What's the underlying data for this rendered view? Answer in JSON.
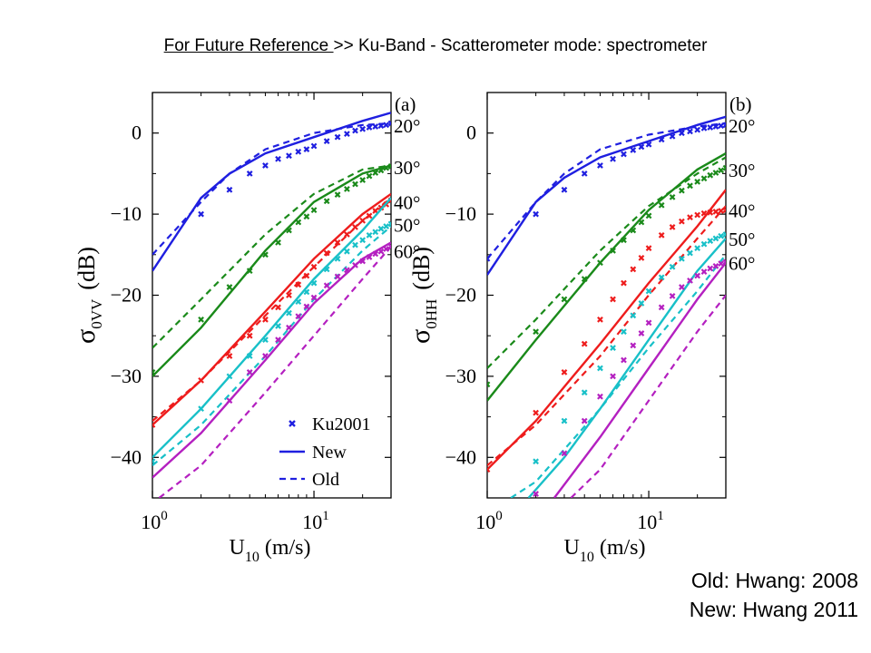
{
  "title": {
    "link_text": "For Future Reference ",
    "rest_text": ">> Ku-Band - Scatterometer mode: spectrometer"
  },
  "notes": [
    "Old: Hwang: 2008",
    "New: Hwang 2011"
  ],
  "colors": {
    "20": "#1f1fe0",
    "30": "#1a8a1a",
    "40": "#ee1c1c",
    "50": "#18c0c8",
    "60": "#b420c0"
  },
  "chart_data": [
    {
      "type": "line",
      "panel_label": "(a)",
      "xlabel": "U10 (m/s)",
      "xlabel_main": "U",
      "xlabel_sub": "10",
      "xlabel_unit": " (m/s)",
      "ylabel": "σ0VV (dB)",
      "ylabel_main": "σ",
      "ylabel_sub": "0VV",
      "ylabel_unit": "(dB)",
      "xscale": "log",
      "xlim": [
        1,
        30
      ],
      "ylim": [
        -45,
        5
      ],
      "xticks": [
        {
          "base": "10",
          "exp": "0",
          "value": 1
        },
        {
          "base": "10",
          "exp": "1",
          "value": 10
        }
      ],
      "yticks": [
        "0",
        "−10",
        "−20",
        "−30",
        "−40"
      ],
      "ytick_values": [
        0,
        -10,
        -20,
        -30,
        -40
      ],
      "legend": {
        "position": "bottom-right",
        "entries": [
          "Ku2001",
          "New",
          "Old"
        ]
      },
      "series": [
        {
          "angle": "20°",
          "end_label": "20°",
          "label_y": 1,
          "new": {
            "x": [
              1,
              2,
              3,
              5,
              10,
              20,
              30
            ],
            "y": [
              -17,
              -8,
              -5,
              -2.5,
              -0.5,
              1.5,
              2.5
            ]
          },
          "old": {
            "x": [
              1,
              2,
              3,
              5,
              10,
              20,
              30
            ],
            "y": [
              -15,
              -8.5,
              -5,
              -2,
              0,
              1,
              1.2
            ]
          },
          "ku2001": {
            "x": [
              2,
              3,
              4,
              5,
              6,
              7,
              8,
              9,
              10,
              12,
              14,
              16,
              18,
              20,
              22,
              24,
              26,
              28,
              30
            ],
            "y": [
              -10,
              -7,
              -5,
              -4,
              -3.2,
              -2.8,
              -2.3,
              -2,
              -1.6,
              -1,
              -0.5,
              -0.1,
              0.3,
              0.5,
              0.7,
              0.8,
              0.9,
              1,
              1.2
            ]
          }
        },
        {
          "angle": "30°",
          "end_label": "30°",
          "label_y": -4.2,
          "new": {
            "x": [
              1,
              2,
              5,
              10,
              20,
              30
            ],
            "y": [
              -30,
              -24,
              -14.5,
              -8.5,
              -5,
              -4
            ]
          },
          "old": {
            "x": [
              1,
              2,
              5,
              10,
              20,
              30
            ],
            "y": [
              -26.5,
              -20.5,
              -12.5,
              -7.5,
              -4.5,
              -4
            ]
          },
          "ku2001": {
            "x": [
              1,
              2,
              3,
              4,
              5,
              6,
              7,
              8,
              9,
              10,
              12,
              14,
              16,
              18,
              20,
              22,
              24,
              26,
              28,
              30
            ],
            "y": [
              -29.5,
              -23,
              -19,
              -17,
              -15,
              -13.5,
              -12,
              -11,
              -10.3,
              -9.5,
              -8.4,
              -7.6,
              -6.9,
              -6.3,
              -5.8,
              -5.3,
              -4.9,
              -4.6,
              -4.3,
              -4.1
            ]
          }
        },
        {
          "angle": "40°",
          "end_label": "40°",
          "label_y": -8.5,
          "new": {
            "x": [
              1,
              2,
              5,
              10,
              20,
              30
            ],
            "y": [
              -36,
              -30.5,
              -22,
              -15.5,
              -10,
              -7.5
            ]
          },
          "old": {
            "x": [
              1,
              2,
              5,
              10,
              20,
              30
            ],
            "y": [
              -35.5,
              -30.5,
              -22.5,
              -16.5,
              -10.8,
              -8
            ]
          },
          "ku2001": {
            "x": [
              1,
              2,
              3,
              4,
              5,
              6,
              7,
              8,
              9,
              10,
              12,
              14,
              16,
              18,
              20,
              22,
              24,
              26,
              28,
              30
            ],
            "y": [
              -36,
              -30.5,
              -27.5,
              -25,
              -23,
              -21.5,
              -20,
              -18.7,
              -17.6,
              -16.5,
              -14.8,
              -13.5,
              -12.5,
              -11.6,
              -10.8,
              -10.2,
              -9.6,
              -9.2,
              -8.8,
              -8.3
            ]
          }
        },
        {
          "angle": "50°",
          "end_label": "50°",
          "label_y": -11.3,
          "new": {
            "x": [
              1,
              2,
              5,
              10,
              20,
              30
            ],
            "y": [
              -40,
              -34,
              -25,
              -18,
              -12,
              -8
            ]
          },
          "old": {
            "x": [
              1,
              2,
              5,
              10,
              20,
              30
            ],
            "y": [
              -41,
              -36,
              -27.5,
              -20.5,
              -14.5,
              -11.5
            ]
          },
          "ku2001": {
            "x": [
              1,
              2,
              3,
              4,
              5,
              6,
              7,
              8,
              9,
              10,
              12,
              14,
              16,
              18,
              20,
              22,
              24,
              26,
              28,
              30
            ],
            "y": [
              -40.5,
              -34,
              -30,
              -27.5,
              -25.5,
              -23.8,
              -22.2,
              -20.8,
              -19.6,
              -18.5,
              -16.8,
              -15.5,
              -14.6,
              -13.8,
              -13.2,
              -12.6,
              -12.2,
              -11.8,
              -11.5,
              -11.2
            ]
          }
        },
        {
          "angle": "60°",
          "end_label": "60°",
          "label_y": -14.5,
          "new": {
            "x": [
              1,
              2,
              5,
              10,
              20,
              30
            ],
            "y": [
              -42.5,
              -37,
              -28,
              -21,
              -15.5,
              -13.5
            ]
          },
          "old": {
            "x": [
              1.1,
              2,
              5,
              10,
              20,
              30
            ],
            "y": [
              -45,
              -41,
              -32,
              -25,
              -18,
              -14
            ]
          },
          "ku2001": {
            "x": [
              3,
              4,
              5,
              6,
              7,
              8,
              9,
              10,
              12,
              14,
              16,
              18,
              20,
              22,
              24,
              26,
              28,
              30
            ],
            "y": [
              -33,
              -29.5,
              -27.5,
              -25.5,
              -24,
              -22.6,
              -21.4,
              -20.3,
              -18.8,
              -17.7,
              -16.9,
              -16.3,
              -15.8,
              -15.3,
              -14.9,
              -14.6,
              -14.3,
              -14
            ]
          }
        }
      ]
    },
    {
      "type": "line",
      "panel_label": "(b)",
      "xlabel": "U10 (m/s)",
      "xlabel_main": "U",
      "xlabel_sub": "10",
      "xlabel_unit": " (m/s)",
      "ylabel": "σ0HH (dB)",
      "ylabel_main": "σ",
      "ylabel_sub": "0HH",
      "ylabel_unit": "(dB)",
      "xscale": "log",
      "xlim": [
        1,
        30
      ],
      "ylim": [
        -45,
        5
      ],
      "xticks": [
        {
          "base": "10",
          "exp": "0",
          "value": 1
        },
        {
          "base": "10",
          "exp": "1",
          "value": 10
        }
      ],
      "yticks": [
        "0",
        "−10",
        "−20",
        "−30",
        "−40"
      ],
      "ytick_values": [
        0,
        -10,
        -20,
        -30,
        -40
      ],
      "series": [
        {
          "angle": "20°",
          "end_label": "20°",
          "label_y": 1,
          "new": {
            "x": [
              1,
              2,
              3,
              5,
              10,
              20,
              30
            ],
            "y": [
              -17.5,
              -8.5,
              -5.5,
              -3,
              -1,
              1,
              2
            ]
          },
          "old": {
            "x": [
              1,
              2,
              3,
              5,
              10,
              20,
              30
            ],
            "y": [
              -15.5,
              -8.5,
              -5,
              -2,
              -0.2,
              0.8,
              1.2
            ]
          },
          "ku2001": {
            "x": [
              1,
              2,
              3,
              4,
              5,
              6,
              7,
              8,
              9,
              10,
              12,
              14,
              16,
              18,
              20,
              22,
              24,
              26,
              28,
              30
            ],
            "y": [
              -15.5,
              -10,
              -7,
              -5,
              -4,
              -3.2,
              -2.6,
              -2.1,
              -1.7,
              -1.4,
              -0.8,
              -0.4,
              0,
              0.2,
              0.4,
              0.6,
              0.7,
              0.8,
              0.9,
              1
            ]
          }
        },
        {
          "angle": "30°",
          "end_label": "30°",
          "label_y": -4.5,
          "new": {
            "x": [
              1,
              2,
              5,
              10,
              20,
              30
            ],
            "y": [
              -33,
              -25.5,
              -16,
              -9.5,
              -4.5,
              -2.5
            ]
          },
          "old": {
            "x": [
              1,
              2,
              5,
              10,
              20,
              30
            ],
            "y": [
              -29,
              -23,
              -14.5,
              -9,
              -5,
              -3
            ]
          },
          "ku2001": {
            "x": [
              1,
              2,
              3,
              4,
              5,
              6,
              7,
              8,
              9,
              10,
              12,
              14,
              16,
              18,
              20,
              22,
              24,
              26,
              28,
              30
            ],
            "y": [
              -31,
              -24.5,
              -20.5,
              -18,
              -16,
              -14.5,
              -13.2,
              -12,
              -11,
              -10.2,
              -8.9,
              -7.9,
              -7.1,
              -6.5,
              -6,
              -5.6,
              -5.2,
              -4.9,
              -4.6,
              -4.3
            ]
          }
        },
        {
          "angle": "40°",
          "end_label": "40°",
          "label_y": -9.5,
          "new": {
            "x": [
              1,
              2,
              5,
              10,
              20,
              30
            ],
            "y": [
              -41.5,
              -35.5,
              -26,
              -18.5,
              -11.5,
              -7
            ]
          },
          "old": {
            "x": [
              1,
              2,
              5,
              10,
              20,
              30
            ],
            "y": [
              -41,
              -36,
              -27.5,
              -20,
              -13,
              -9
            ]
          },
          "ku2001": {
            "x": [
              1,
              2,
              3,
              4,
              5,
              6,
              7,
              8,
              9,
              10,
              12,
              14,
              16,
              18,
              20,
              22,
              24,
              26,
              28,
              30
            ],
            "y": [
              -41.5,
              -34.5,
              -29.5,
              -26,
              -23,
              -20.5,
              -18.5,
              -16.8,
              -15.4,
              -14.2,
              -12.6,
              -11.6,
              -10.9,
              -10.4,
              -10.1,
              -9.9,
              -9.8,
              -9.7,
              -9.6,
              -9.5
            ]
          }
        },
        {
          "angle": "50°",
          "end_label": "50°",
          "label_y": -13,
          "new": {
            "x": [
              1.8,
              3,
              5,
              10,
              20,
              30
            ],
            "y": [
              -45,
              -40,
              -34,
              -25.5,
              -17,
              -13
            ]
          },
          "old": {
            "x": [
              1.4,
              2,
              5,
              10,
              20,
              30
            ],
            "y": [
              -45,
              -43,
              -34,
              -26.5,
              -19.5,
              -15
            ]
          },
          "ku2001": {
            "x": [
              2,
              3,
              4,
              5,
              6,
              7,
              8,
              9,
              10,
              12,
              14,
              16,
              18,
              20,
              22,
              24,
              26,
              28,
              30
            ],
            "y": [
              -40.5,
              -35.5,
              -32,
              -29,
              -26.5,
              -24.5,
              -22.5,
              -21,
              -19.5,
              -17.8,
              -16.5,
              -15.5,
              -14.8,
              -14.2,
              -13.7,
              -13.3,
              -13,
              -12.7,
              -12.5
            ]
          }
        },
        {
          "angle": "60°",
          "end_label": "60°",
          "label_y": -16,
          "new": {
            "x": [
              2.6,
              5,
              10,
              20,
              30
            ],
            "y": [
              -45,
              -37.5,
              -29,
              -20.5,
              -16
            ]
          },
          "old": {
            "x": [
              3.3,
              5,
              10,
              20,
              30
            ],
            "y": [
              -45,
              -41.5,
              -33,
              -24.5,
              -20
            ]
          },
          "ku2001": {
            "x": [
              2,
              3,
              4,
              5,
              6,
              7,
              8,
              9,
              10,
              12,
              14,
              16,
              18,
              20,
              22,
              24,
              26,
              28,
              30
            ],
            "y": [
              -44.5,
              -39.5,
              -35.5,
              -32.5,
              -30,
              -28,
              -26.2,
              -24.7,
              -23.4,
              -21.5,
              -20.1,
              -19,
              -18.2,
              -17.6,
              -17.1,
              -16.7,
              -16.4,
              -16.1,
              -15.9
            ]
          }
        }
      ]
    }
  ]
}
